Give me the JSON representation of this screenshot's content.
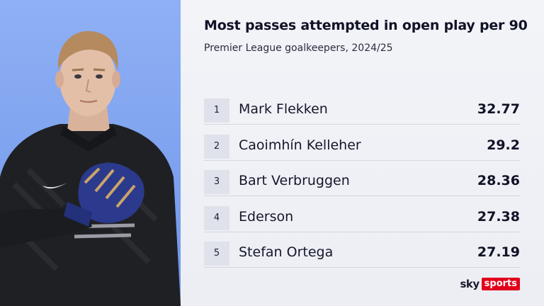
{
  "chart_data": {
    "type": "table",
    "title": "Most passes attempted in open play per 90",
    "subtitle": "Premier League goalkeepers, 2024/25",
    "rows": [
      {
        "rank": "1",
        "name": "Mark Flekken",
        "value": "32.77"
      },
      {
        "rank": "2",
        "name": "Caoimhín Kelleher",
        "value": "29.2"
      },
      {
        "rank": "3",
        "name": "Bart Verbruggen",
        "value": "28.36"
      },
      {
        "rank": "4",
        "name": "Ederson",
        "value": "27.38"
      },
      {
        "rank": "5",
        "name": "Stefan Ortega",
        "value": "27.19"
      }
    ]
  },
  "branding": {
    "sky": "sky",
    "sports": "sports",
    "accent_color": "#e2001a"
  },
  "photo": {
    "background_color": "#7ea2ef",
    "kit_color": "#1f2024",
    "glove_color": "#2b3a8c"
  }
}
